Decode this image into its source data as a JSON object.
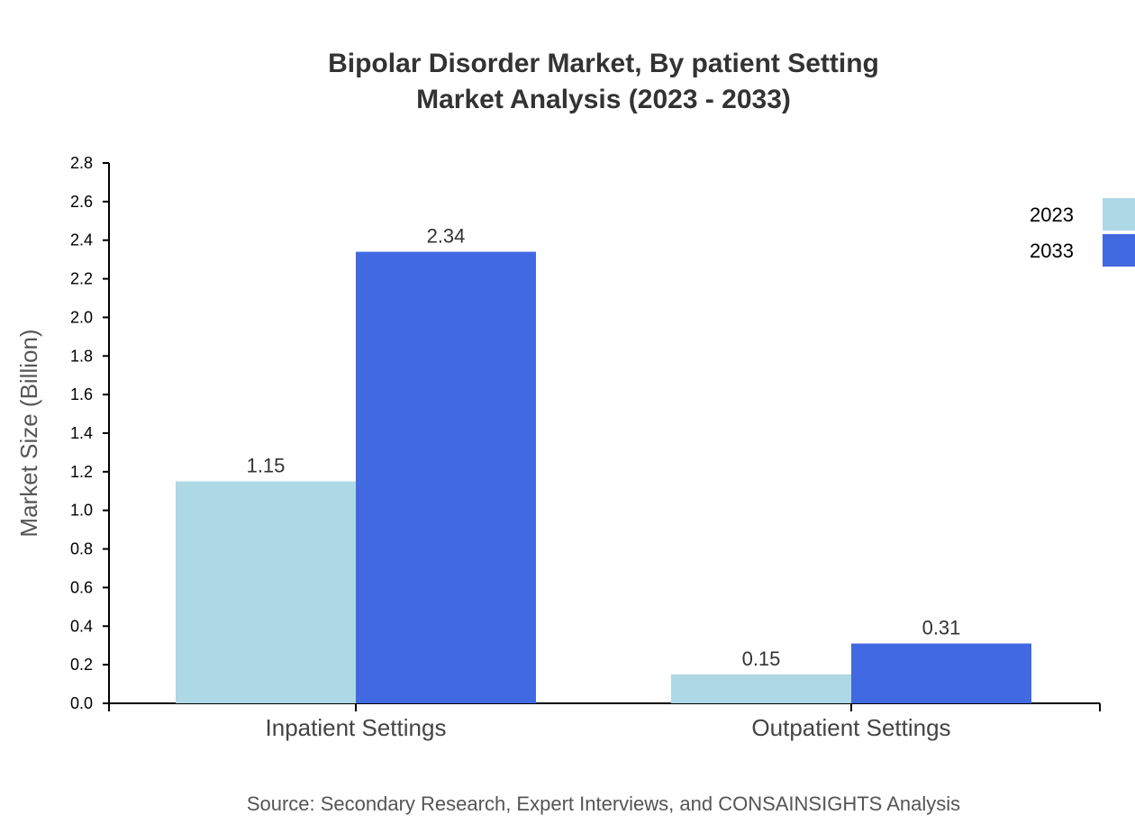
{
  "chart_data": {
    "type": "bar",
    "title": "Bipolar Disorder Market, By patient Setting",
    "subtitle": "Market Analysis (2023 - 2033)",
    "xlabel": "",
    "ylabel": "Market Size (Billion)",
    "categories": [
      "Inpatient Settings",
      "Outpatient Settings"
    ],
    "series": [
      {
        "name": "2023",
        "values": [
          1.15,
          0.15
        ],
        "color": "#add8e6"
      },
      {
        "name": "2033",
        "values": [
          2.34,
          0.31
        ],
        "color": "#4169e1"
      }
    ],
    "ylim": [
      0,
      2.8
    ],
    "yticks": [
      "0.0",
      "0.2",
      "0.4",
      "0.6",
      "0.8",
      "1.0",
      "1.2",
      "1.4",
      "1.6",
      "1.8",
      "2.0",
      "2.2",
      "2.4",
      "2.6",
      "2.8"
    ],
    "grid": false,
    "legend_position": "top-right",
    "source": "Source: Secondary Research, Expert Interviews, and CONSAINSIGHTS Analysis"
  }
}
